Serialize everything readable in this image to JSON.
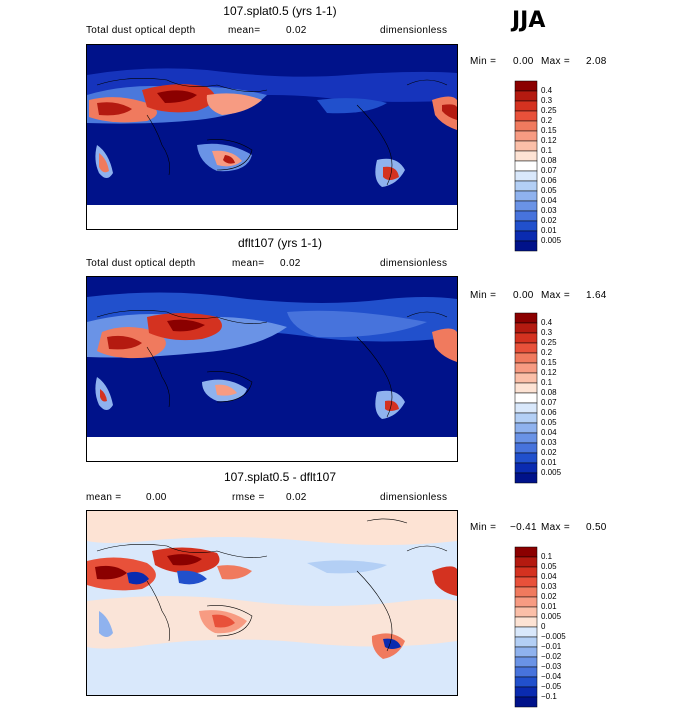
{
  "season": "JJA",
  "chart_data": [
    {
      "type": "heatmap",
      "title": "107.splat0.5 (yrs 1-1)",
      "variable": "Total dust optical depth",
      "mean_label": "mean=",
      "mean_value": "0.02",
      "units": "dimensionless",
      "min_label": "Min =",
      "min_value": "0.00",
      "max_label": "Max =",
      "max_value": "2.08",
      "levels": [
        "0.4",
        "0.3",
        "0.25",
        "0.2",
        "0.15",
        "0.12",
        "0.1",
        "0.08",
        "0.07",
        "0.06",
        "0.05",
        "0.04",
        "0.03",
        "0.02",
        "0.01",
        "0.005"
      ],
      "colors": [
        "#8b0000",
        "#b41a10",
        "#d43220",
        "#e8513a",
        "#f07a5e",
        "#f79b82",
        "#fbbfa8",
        "#fde3d4",
        "#ffffff",
        "#d9e8fb",
        "#b3cff5",
        "#8fb2ee",
        "#6a93e6",
        "#4773dc",
        "#2150cc",
        "#0a2bb0"
      ],
      "lowest_color": "#00128a"
    },
    {
      "type": "heatmap",
      "title": "dflt107 (yrs 1-1)",
      "variable": "Total dust optical depth",
      "mean_label": "mean=",
      "mean_value": "0.02",
      "units": "dimensionless",
      "min_label": "Min =",
      "min_value": "0.00",
      "max_label": "Max =",
      "max_value": "1.64",
      "levels": [
        "0.4",
        "0.3",
        "0.25",
        "0.2",
        "0.15",
        "0.12",
        "0.1",
        "0.08",
        "0.07",
        "0.06",
        "0.05",
        "0.04",
        "0.03",
        "0.02",
        "0.01",
        "0.005"
      ],
      "colors": [
        "#8b0000",
        "#b41a10",
        "#d43220",
        "#e8513a",
        "#f07a5e",
        "#f79b82",
        "#fbbfa8",
        "#fde3d4",
        "#ffffff",
        "#d9e8fb",
        "#b3cff5",
        "#8fb2ee",
        "#6a93e6",
        "#4773dc",
        "#2150cc",
        "#0a2bb0"
      ],
      "lowest_color": "#00128a"
    },
    {
      "type": "heatmap",
      "title": "107.splat0.5 - dflt107",
      "mean_label": "mean =",
      "mean_value": "0.00",
      "rmse_label": "rmse =",
      "rmse_value": "0.02",
      "units": "dimensionless",
      "min_label": "Min =",
      "min_value": "−0.41",
      "max_label": "Max =",
      "max_value": "0.50",
      "levels": [
        "0.1",
        "0.05",
        "0.04",
        "0.03",
        "0.02",
        "0.01",
        "0.005",
        "0",
        "−0.005",
        "−0.01",
        "−0.02",
        "−0.03",
        "−0.04",
        "−0.05",
        "−0.1"
      ],
      "colors": [
        "#8b0000",
        "#b41a10",
        "#d43220",
        "#e8513a",
        "#f07a5e",
        "#f79b82",
        "#fbbfa8",
        "#fde3d4",
        "#d9e8fb",
        "#b3cff5",
        "#8fb2ee",
        "#6a93e6",
        "#4773dc",
        "#2150cc",
        "#0a2bb0"
      ],
      "lowest_color": "#00128a"
    }
  ]
}
